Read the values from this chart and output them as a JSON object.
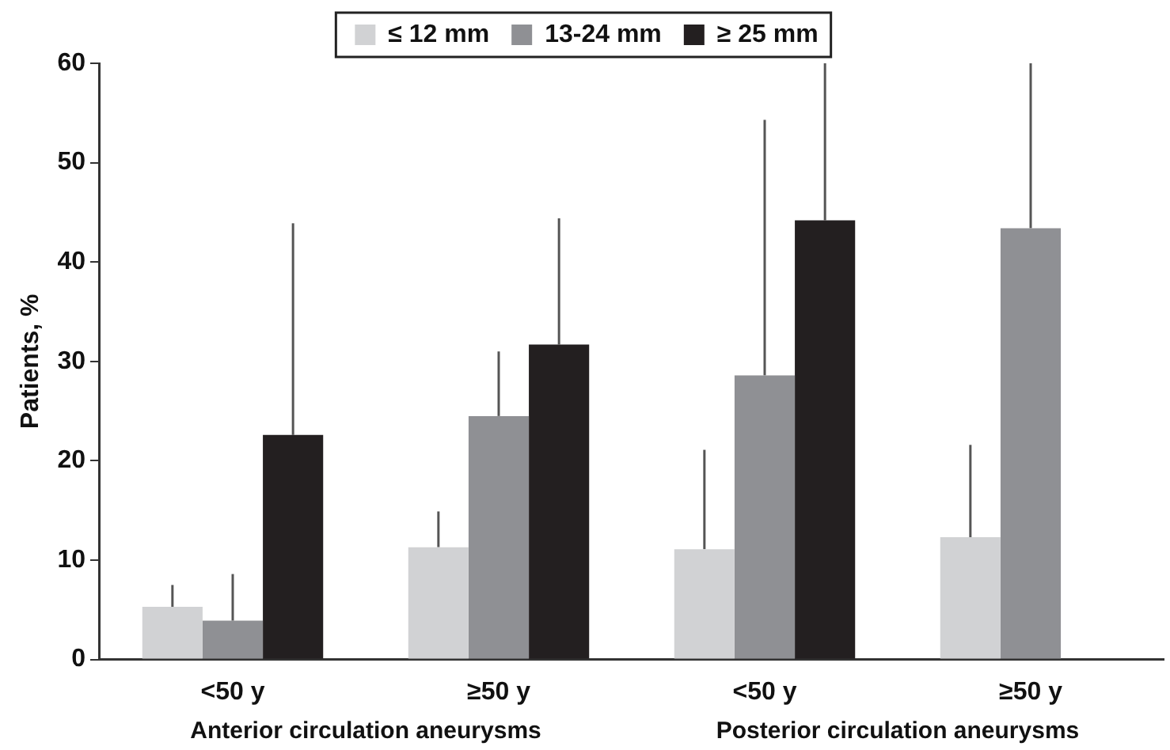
{
  "chart_data": {
    "type": "bar",
    "ylabel": "Patients, %",
    "categories": [
      "<50 y",
      "≥50 y",
      "<50 y",
      "≥50 y"
    ],
    "annotations": [
      "Anterior circulation aneurysms",
      "Posterior circulation aneurysms"
    ],
    "series": [
      {
        "name": "≤ 12 mm",
        "color": "#d1d2d4",
        "values": [
          5.3,
          11.3,
          11.1,
          12.3
        ],
        "errors": [
          [
            5.3,
            7.5
          ],
          [
            11.3,
            14.9
          ],
          [
            11.1,
            21.1
          ],
          [
            12.3,
            21.6
          ]
        ]
      },
      {
        "name": "13-24 mm",
        "color": "#8f9094",
        "values": [
          3.9,
          24.5,
          28.6,
          43.4
        ],
        "errors": [
          [
            3.9,
            8.6
          ],
          [
            24.5,
            31.0
          ],
          [
            28.6,
            54.3
          ],
          [
            43.4,
            60
          ]
        ]
      },
      {
        "name": "≥ 25 mm",
        "color": "#231f20",
        "values": [
          22.6,
          31.7,
          44.2,
          null
        ],
        "errors": [
          [
            22.6,
            43.9
          ],
          [
            31.7,
            44.4
          ],
          [
            44.2,
            60
          ],
          null
        ]
      }
    ],
    "ylim": [
      0,
      60
    ],
    "yticks": [
      0,
      10,
      20,
      30,
      40,
      50,
      60
    ],
    "grid": false,
    "legend": "top"
  }
}
